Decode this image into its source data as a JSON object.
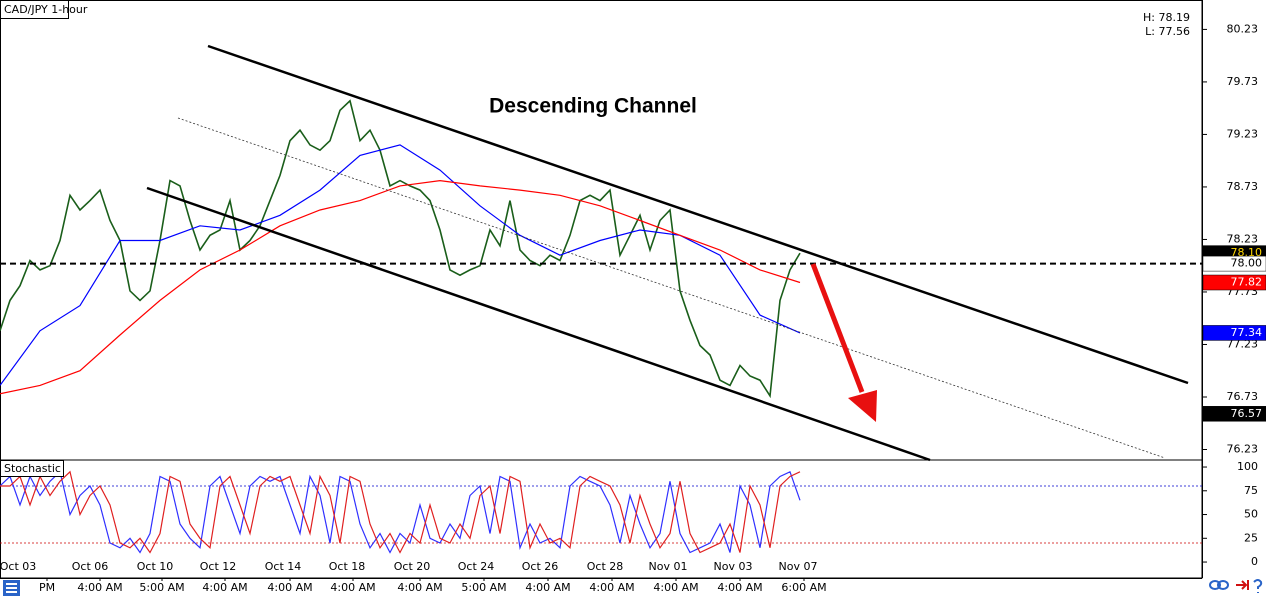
{
  "chart_data": [
    {
      "type": "line",
      "title": "CAD/JPY 1-hour",
      "high": "H: 78.19",
      "low": "L: 77.56",
      "annotation": "Descending Channel",
      "xlim": [
        0,
        240.4
      ],
      "ylim": [
        76.13,
        80.51
      ],
      "yticks": [
        80.23,
        79.73,
        79.23,
        78.73,
        78.23,
        77.73,
        77.23,
        76.73,
        76.23
      ],
      "series": [
        {
          "color": "#1a5e1a",
          "x": [
            0,
            2,
            4,
            6,
            8,
            10,
            12,
            14,
            16,
            18,
            20,
            22,
            24,
            26,
            28,
            30,
            32,
            34,
            36,
            38,
            40,
            42,
            44,
            46,
            48,
            50,
            52,
            54,
            56,
            58,
            60,
            62,
            64,
            66,
            68,
            70,
            72,
            74,
            76,
            78,
            80,
            82,
            84,
            86,
            88,
            90,
            92,
            94,
            96,
            98,
            100,
            102,
            104,
            106,
            108,
            110,
            112,
            114,
            116,
            118,
            120,
            122,
            124,
            126,
            128,
            130,
            132,
            134,
            136,
            138,
            140,
            142,
            144,
            146,
            148,
            150,
            152,
            154,
            156,
            158,
            160
          ],
          "values": [
            77.36,
            77.65,
            77.79,
            78.03,
            77.94,
            77.98,
            78.22,
            78.65,
            78.51,
            78.6,
            78.7,
            78.41,
            78.22,
            77.74,
            77.65,
            77.74,
            78.22,
            78.79,
            78.74,
            78.41,
            78.13,
            78.27,
            78.32,
            78.6,
            78.13,
            78.22,
            78.36,
            78.6,
            78.84,
            79.17,
            79.27,
            79.13,
            79.08,
            79.17,
            79.46,
            79.55,
            79.17,
            79.27,
            79.08,
            78.74,
            78.79,
            78.74,
            78.7,
            78.6,
            78.32,
            77.94,
            77.89,
            77.94,
            77.98,
            78.32,
            78.17,
            78.6,
            78.13,
            78.03,
            77.98,
            78.08,
            78.03,
            78.27,
            78.6,
            78.65,
            78.6,
            78.7,
            78.08,
            78.27,
            78.46,
            78.13,
            78.41,
            78.51,
            77.74,
            77.46,
            77.22,
            77.13,
            76.89,
            76.84,
            77.03,
            76.93,
            76.89,
            76.74,
            77.65,
            77.94,
            78.1
          ]
        },
        {
          "color": "#0000ff",
          "x": [
            0,
            8,
            16,
            24,
            32,
            40,
            48,
            56,
            64,
            72,
            80,
            88,
            96,
            104,
            112,
            120,
            128,
            136,
            144,
            152,
            160
          ],
          "values": [
            76.84,
            77.36,
            77.6,
            78.22,
            78.22,
            78.36,
            78.32,
            78.46,
            78.7,
            79.03,
            79.13,
            78.89,
            78.55,
            78.27,
            78.08,
            78.22,
            78.32,
            78.27,
            78.08,
            77.51,
            77.34
          ]
        },
        {
          "color": "#ff0000",
          "x": [
            0,
            8,
            16,
            24,
            32,
            40,
            48,
            56,
            64,
            72,
            80,
            88,
            96,
            104,
            112,
            120,
            128,
            136,
            144,
            152,
            160
          ],
          "values": [
            76.76,
            76.84,
            76.98,
            77.32,
            77.65,
            77.94,
            78.13,
            78.36,
            78.51,
            78.6,
            78.74,
            78.79,
            78.74,
            78.7,
            78.65,
            78.55,
            78.41,
            78.27,
            78.13,
            77.94,
            77.82
          ]
        }
      ],
      "price_labels": [
        {
          "value": 78.1,
          "label": "78.10",
          "color": "#000000",
          "text_color": "#ffd700"
        },
        {
          "value": 78.0,
          "label": "78.00",
          "color": "#ffffff",
          "text_color": "#000000",
          "dashed_line": true
        },
        {
          "value": 77.82,
          "label": "77.82",
          "color": "#ff0000",
          "text_color": "#ffffff"
        },
        {
          "value": 77.34,
          "label": "77.34",
          "color": "#0000ff",
          "text_color": "#ffffff"
        },
        {
          "value": 76.57,
          "label": "76.57",
          "color": "#000000",
          "text_color": "#ffffff"
        }
      ]
    },
    {
      "type": "line",
      "title": "Stochastic",
      "xlim": [
        0,
        240.4
      ],
      "ylim": [
        -16.8,
        107.4
      ],
      "yticks": [
        0,
        25,
        50,
        75,
        100
      ],
      "levels": [
        {
          "value": 80,
          "color": "#0000cc"
        },
        {
          "value": 20,
          "color": "#cc0000"
        }
      ],
      "series": [
        {
          "color": "#3030ff",
          "x": [
            0,
            2,
            4,
            6,
            8,
            10,
            12,
            14,
            16,
            18,
            20,
            22,
            24,
            26,
            28,
            30,
            32,
            34,
            36,
            38,
            40,
            42,
            44,
            46,
            48,
            50,
            52,
            54,
            56,
            58,
            60,
            62,
            64,
            66,
            68,
            70,
            72,
            74,
            76,
            78,
            80,
            82,
            84,
            86,
            88,
            90,
            92,
            94,
            96,
            98,
            100,
            102,
            104,
            106,
            108,
            110,
            112,
            114,
            116,
            118,
            120,
            122,
            124,
            126,
            128,
            130,
            132,
            134,
            136,
            138,
            140,
            142,
            144,
            146,
            148,
            150,
            152,
            154,
            156,
            158,
            160
          ],
          "values": [
            80,
            90,
            60,
            90,
            70,
            85,
            95,
            50,
            70,
            80,
            60,
            20,
            15,
            25,
            10,
            30,
            90,
            85,
            40,
            25,
            15,
            80,
            90,
            60,
            30,
            80,
            90,
            85,
            90,
            60,
            30,
            90,
            70,
            20,
            90,
            85,
            40,
            15,
            30,
            10,
            30,
            20,
            60,
            25,
            20,
            40,
            25,
            70,
            80,
            30,
            90,
            85,
            15,
            40,
            20,
            25,
            15,
            80,
            90,
            85,
            80,
            60,
            20,
            70,
            40,
            15,
            30,
            85,
            30,
            10,
            15,
            20,
            40,
            10,
            80,
            60,
            15,
            80,
            90,
            95,
            65
          ]
        },
        {
          "color": "#e02020",
          "x": [
            0,
            2,
            4,
            6,
            8,
            10,
            12,
            14,
            16,
            18,
            20,
            22,
            24,
            26,
            28,
            30,
            32,
            34,
            36,
            38,
            40,
            42,
            44,
            46,
            48,
            50,
            52,
            54,
            56,
            58,
            60,
            62,
            64,
            66,
            68,
            70,
            72,
            74,
            76,
            78,
            80,
            82,
            84,
            86,
            88,
            90,
            92,
            94,
            96,
            98,
            100,
            102,
            104,
            106,
            108,
            110,
            112,
            114,
            116,
            118,
            120,
            122,
            124,
            126,
            128,
            130,
            132,
            134,
            136,
            138,
            140,
            142,
            144,
            146,
            148,
            150,
            152,
            154,
            156,
            158,
            160
          ],
          "values": [
            80,
            80,
            90,
            60,
            90,
            70,
            85,
            95,
            50,
            70,
            80,
            60,
            20,
            15,
            25,
            10,
            30,
            90,
            85,
            40,
            25,
            15,
            80,
            90,
            60,
            30,
            80,
            90,
            85,
            90,
            60,
            30,
            90,
            70,
            20,
            90,
            85,
            40,
            15,
            30,
            10,
            30,
            20,
            60,
            25,
            20,
            40,
            25,
            70,
            80,
            30,
            90,
            85,
            15,
            40,
            20,
            25,
            15,
            80,
            90,
            85,
            80,
            60,
            20,
            70,
            40,
            15,
            30,
            85,
            30,
            10,
            15,
            20,
            40,
            10,
            80,
            60,
            15,
            80,
            90,
            95
          ]
        }
      ],
      "xticks": [
        {
          "value": 3.6,
          "label": "Oct 03"
        },
        {
          "value": 18,
          "label": "Oct 06"
        },
        {
          "value": 31,
          "label": "Oct 10"
        },
        {
          "value": 43.6,
          "label": "Oct 12"
        },
        {
          "value": 56.6,
          "label": "Oct 14"
        },
        {
          "value": 69.4,
          "label": "Oct 18"
        },
        {
          "value": 82.4,
          "label": "Oct 20"
        },
        {
          "value": 95.2,
          "label": "Oct 24"
        },
        {
          "value": 108,
          "label": "Oct 26"
        },
        {
          "value": 121,
          "label": "Oct 28"
        },
        {
          "value": 133.6,
          "label": "Nov 01"
        },
        {
          "value": 146.6,
          "label": "Nov 03"
        },
        {
          "value": 159.6,
          "label": "Nov 07"
        }
      ],
      "time_ticks": [
        {
          "value": 9.4,
          "label": "PM"
        },
        {
          "value": 20,
          "label": "4:00 AM"
        },
        {
          "value": 32.4,
          "label": "5:00 AM"
        },
        {
          "value": 45,
          "label": "4:00 AM"
        },
        {
          "value": 58,
          "label": "4:00 AM"
        },
        {
          "value": 70.6,
          "label": "4:00 AM"
        },
        {
          "value": 84,
          "label": "4:00 AM"
        },
        {
          "value": 96.8,
          "label": "5:00 AM"
        },
        {
          "value": 109.6,
          "label": "4:00 AM"
        },
        {
          "value": 122.4,
          "label": "4:00 AM"
        },
        {
          "value": 135.2,
          "label": "4:00 AM"
        },
        {
          "value": 148,
          "label": "4:00 AM"
        },
        {
          "value": 160.8,
          "label": "6:00 AM"
        }
      ]
    }
  ]
}
